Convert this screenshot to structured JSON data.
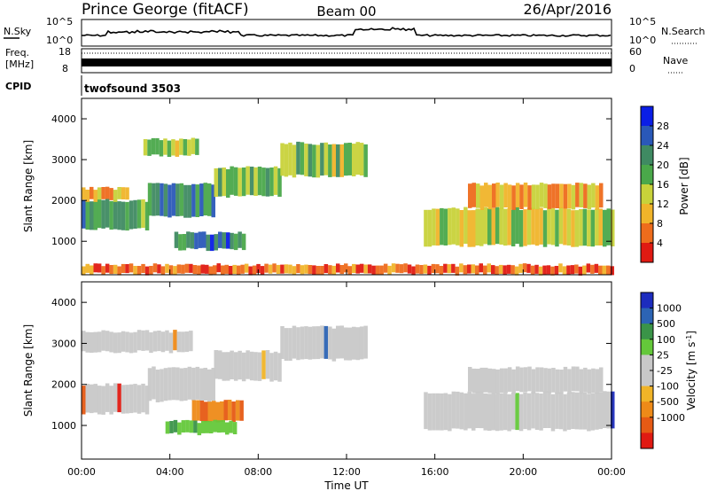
{
  "header": {
    "station": "Prince George (fitACF)",
    "beam": "Beam 00",
    "date": "26/Apr/2016"
  },
  "panels": {
    "noise": {
      "left_label": "N.Sky",
      "left_ticks": [
        "10^5",
        "10^0"
      ],
      "right_label": "N.Search",
      "right_ticks": [
        "10^5",
        "10^0"
      ]
    },
    "freq": {
      "left_label_1": "Freq.",
      "left_label_2": "[MHz]",
      "left_ticks": [
        "18",
        "8"
      ],
      "right_label": "Nave",
      "right_ticks": [
        "60",
        "0"
      ]
    },
    "cpid": {
      "label": "CPID",
      "value": "twofsound 3503"
    }
  },
  "colors": {
    "power_scale": [
      "#0a1ee6",
      "#2a58b8",
      "#3f8a62",
      "#4aa84a",
      "#c8d23a",
      "#f0b42a",
      "#ee6c1c",
      "#e01a12"
    ],
    "velocity_scale": [
      "#1c2cbe",
      "#2c64b4",
      "#3a9448",
      "#64c83a",
      "#c8c8c8",
      "#c8c8c8",
      "#f0b428",
      "#ee8a18",
      "#e65a14",
      "#e01a12"
    ],
    "velocity_gray": "#c8c8c8"
  },
  "chart_data": [
    {
      "type": "heatmap",
      "title": "Power",
      "xlabel": "Time UT",
      "ylabel": "Slant Range [km]",
      "x_ticks": [
        "00:00",
        "04:00",
        "08:00",
        "12:00",
        "16:00",
        "20:00",
        "00:00"
      ],
      "y_ticks": [
        "1000",
        "2000",
        "3000",
        "4000"
      ],
      "x_range_hours": [
        0,
        24
      ],
      "y_range_km": [
        180,
        4500
      ],
      "colorbar": {
        "label": "Power [dB]",
        "ticks": [
          "4",
          "8",
          "12",
          "16",
          "20",
          "24",
          "28"
        ],
        "range": [
          0,
          32
        ]
      },
      "bands": [
        {
          "t0": 0.0,
          "t1": 3.0,
          "r0": 1300,
          "r1": 2000,
          "level": 20
        },
        {
          "t0": 3.0,
          "t1": 6.0,
          "r0": 1600,
          "r1": 2400,
          "level": 22
        },
        {
          "t0": 6.0,
          "t1": 9.0,
          "r0": 2100,
          "r1": 2800,
          "level": 18
        },
        {
          "t0": 9.0,
          "t1": 12.8,
          "r0": 2600,
          "r1": 3400,
          "level": 16
        },
        {
          "t0": 2.8,
          "t1": 5.2,
          "r0": 3100,
          "r1": 3500,
          "level": 16
        },
        {
          "t0": 4.2,
          "t1": 7.4,
          "r0": 800,
          "r1": 1200,
          "level": 24
        },
        {
          "t0": 15.5,
          "t1": 24.0,
          "r0": 900,
          "r1": 1800,
          "level": 14
        },
        {
          "t0": 17.5,
          "t1": 23.5,
          "r0": 1800,
          "r1": 2400,
          "level": 10
        },
        {
          "t0": 0.0,
          "t1": 2.0,
          "r0": 2000,
          "r1": 2300,
          "level": 8
        },
        {
          "t0": 0.0,
          "t1": 24.0,
          "r0": 200,
          "r1": 420,
          "level": 6
        }
      ]
    },
    {
      "type": "heatmap",
      "title": "Velocity",
      "xlabel": "Time UT",
      "ylabel": "Slant Range [km]",
      "x_ticks": [
        "00:00",
        "04:00",
        "08:00",
        "12:00",
        "16:00",
        "20:00",
        "00:00"
      ],
      "y_ticks": [
        "1000",
        "2000",
        "3000",
        "4000"
      ],
      "x_range_hours": [
        0,
        24
      ],
      "y_range_km": [
        180,
        4500
      ],
      "colorbar": {
        "label": "Velocity [m s^-1]",
        "ticks": [
          "1000",
          "500",
          "100",
          "25",
          "-25",
          "-100",
          "-500",
          "-1000"
        ],
        "range": [
          -1200,
          1200
        ]
      },
      "bands": [
        {
          "t0": 0.0,
          "t1": 3.0,
          "r0": 1300,
          "r1": 2000,
          "level": 0
        },
        {
          "t0": 3.0,
          "t1": 6.0,
          "r0": 1600,
          "r1": 2400,
          "level": 0
        },
        {
          "t0": 6.0,
          "t1": 9.0,
          "r0": 2100,
          "r1": 2800,
          "level": 0
        },
        {
          "t0": 9.0,
          "t1": 12.8,
          "r0": 2600,
          "r1": 3400,
          "level": 0
        },
        {
          "t0": 0.0,
          "t1": 5.0,
          "r0": 2800,
          "r1": 3300,
          "level": 0
        },
        {
          "t0": 5.0,
          "t1": 7.2,
          "r0": 1100,
          "r1": 1600,
          "level": -300
        },
        {
          "t0": 3.8,
          "t1": 7.0,
          "r0": 800,
          "r1": 1100,
          "level": 150
        },
        {
          "t0": 15.5,
          "t1": 24.0,
          "r0": 900,
          "r1": 1800,
          "level": 0
        },
        {
          "t0": 17.5,
          "t1": 23.5,
          "r0": 1800,
          "r1": 2400,
          "level": 0
        }
      ]
    }
  ]
}
